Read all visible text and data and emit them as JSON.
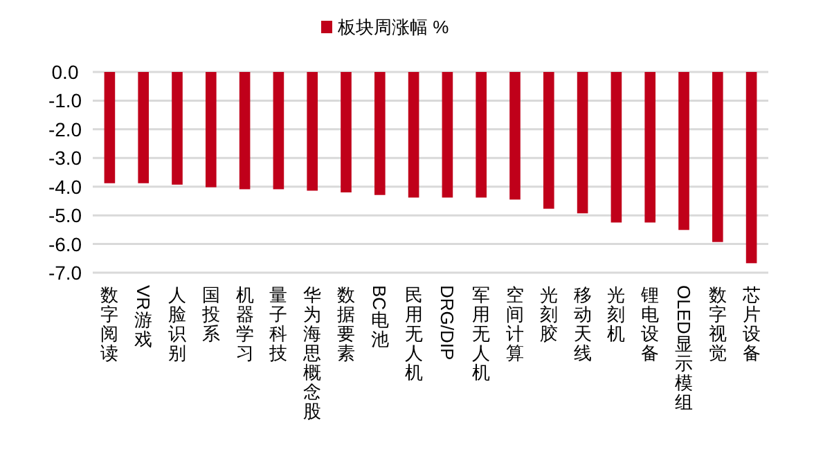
{
  "chart_data": {
    "type": "bar",
    "legend": "top",
    "categories": [
      "数字阅读",
      "VR游戏",
      "人脸识别",
      "国投系",
      "机器学习",
      "量子科技",
      "华为海思概念股",
      "数据要素",
      "BC电池",
      "民用无人机",
      "DRG/DIP",
      "军用无人机",
      "空间计算",
      "光刻胶",
      "移动天线",
      "光刻机",
      "锂电设备",
      "OLED显示模组",
      "数字视觉",
      "芯片设备"
    ],
    "series": [
      {
        "name": "板块周涨幅 %",
        "color": "#c0001a",
        "values": [
          -3.88,
          -3.88,
          -3.93,
          -4.02,
          -4.09,
          -4.09,
          -4.14,
          -4.2,
          -4.29,
          -4.38,
          -4.38,
          -4.38,
          -4.45,
          -4.77,
          -4.93,
          -5.25,
          -5.25,
          -5.51,
          -5.93,
          -6.67
        ]
      }
    ],
    "ylim": [
      -7,
      0
    ],
    "yticks": [
      {
        "value": 0,
        "label": "0.0"
      },
      {
        "value": -1,
        "label": "-1.0"
      },
      {
        "value": -2,
        "label": "-2.0"
      },
      {
        "value": -3,
        "label": "-3.0"
      },
      {
        "value": -4,
        "label": "-4.0"
      },
      {
        "value": -5,
        "label": "-5.0"
      },
      {
        "value": -6,
        "label": "-6.0"
      },
      {
        "value": -7,
        "label": "-7.0"
      }
    ],
    "grid": "y"
  }
}
